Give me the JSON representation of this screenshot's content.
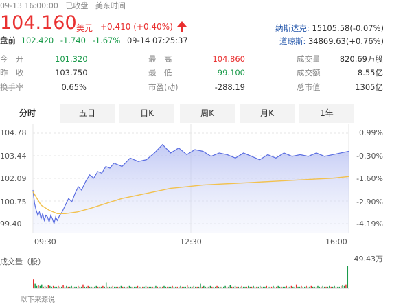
{
  "header": {
    "datetime": "09-13 16:00:00",
    "status": "已收盘",
    "timezone": "美东时间",
    "price": "104.160",
    "currency": "美元",
    "change": "+0.410 (+0.40%)",
    "arrow": "up-arrow-icon",
    "premarket_label": "盘前",
    "premarket_price": "102.420",
    "premarket_change": "-1.740",
    "premarket_pct": "-1.67%",
    "premarket_time": "09-14 07:25:37",
    "indices": [
      {
        "name": "纳斯达克:",
        "value": "15105.58(-0.07%)"
      },
      {
        "name": "道琼斯:",
        "value": "34869.63(+0.76%)"
      }
    ]
  },
  "stats": {
    "open_label": "今　开",
    "open": "101.320",
    "prev_label": "昨　收",
    "prev": "103.750",
    "turnover_label": "换手率",
    "turnover": "0.65%",
    "high_label": "最　高",
    "high": "104.860",
    "low_label": "最　低",
    "low": "99.100",
    "pe_label": "市盈(动)",
    "pe": "-288.19",
    "volume_label": "成交量",
    "volume": "820.69万股",
    "amount_label": "成交额",
    "amount": "8.55亿",
    "mcap_label": "总市值",
    "mcap": "1305亿"
  },
  "tabs": [
    "分时",
    "五日",
    "日K",
    "周K",
    "月K",
    "1年"
  ],
  "active_tab": "分时",
  "chart_data": {
    "type": "line",
    "title": "",
    "y_ticks_left": [
      "104.78",
      "103.44",
      "102.09",
      "100.75",
      "99.40"
    ],
    "y_ticks_right": [
      "0.99%",
      "-0.30%",
      "-1.60%",
      "-2.90%",
      "-4.19%"
    ],
    "x_ticks": [
      "09:30",
      "12:30",
      "16:00"
    ],
    "ylim": [
      99.4,
      104.78
    ],
    "series": [
      {
        "color": "#5b6ee1",
        "x": [
          0,
          2,
          4,
          6,
          8,
          10,
          12,
          14,
          16,
          18,
          20,
          22,
          24,
          26,
          28,
          30,
          33,
          36,
          40,
          44,
          48,
          52,
          56,
          60,
          65,
          70,
          75,
          80,
          85,
          90,
          95,
          100,
          110,
          120,
          130,
          140,
          150,
          160,
          170,
          180,
          190,
          200,
          210,
          220,
          230,
          240,
          250,
          260,
          270,
          280,
          290,
          300,
          310,
          320,
          330,
          340,
          350,
          360,
          370,
          380,
          390
        ],
        "values": [
          101.4,
          100.6,
          100.2,
          99.9,
          100.1,
          99.7,
          100.0,
          99.6,
          99.9,
          99.8,
          99.5,
          99.9,
          99.7,
          99.4,
          99.8,
          99.6,
          99.9,
          100.1,
          100.5,
          100.9,
          100.7,
          101.2,
          101.6,
          101.4,
          101.9,
          102.3,
          102.1,
          102.5,
          102.4,
          102.8,
          102.7,
          103.0,
          102.8,
          103.3,
          103.1,
          103.2,
          103.6,
          104.1,
          103.6,
          103.9,
          103.5,
          103.8,
          103.7,
          103.4,
          103.6,
          103.5,
          103.3,
          103.6,
          103.4,
          103.2,
          103.5,
          103.3,
          103.6,
          103.4,
          103.5,
          103.4,
          103.6,
          103.4,
          103.5,
          103.6,
          103.7
        ]
      },
      {
        "color": "#f2c14e",
        "x": [
          0,
          10,
          20,
          30,
          40,
          55,
          70,
          90,
          110,
          130,
          150,
          170,
          190,
          210,
          230,
          250,
          270,
          290,
          310,
          330,
          350,
          370,
          390
        ],
        "values": [
          101.3,
          100.5,
          100.2,
          100.0,
          100.0,
          100.1,
          100.3,
          100.6,
          100.9,
          101.1,
          101.3,
          101.5,
          101.6,
          101.7,
          101.75,
          101.8,
          101.85,
          101.9,
          101.95,
          102.0,
          102.05,
          102.1,
          102.2
        ]
      }
    ],
    "volume": {
      "label": "成交量（股）",
      "max_label": "49.43万",
      "values": [
        12,
        6,
        3,
        4,
        3,
        5,
        2,
        3,
        2,
        4,
        3,
        2,
        3,
        2,
        2,
        3,
        2,
        2,
        4,
        2,
        3,
        2,
        2,
        3,
        2,
        2,
        2,
        3,
        2,
        2,
        5,
        2,
        2,
        3,
        2,
        2,
        2,
        2,
        3,
        2,
        2,
        2,
        3,
        2,
        8,
        2,
        2,
        2,
        3,
        2,
        2,
        2,
        2,
        3,
        2,
        2,
        2,
        2,
        3,
        2,
        2,
        2,
        2,
        3,
        2,
        2,
        2,
        2,
        3,
        2,
        2,
        2,
        2,
        2,
        3,
        2,
        2,
        2,
        2,
        3,
        2,
        2,
        2,
        2,
        3,
        2,
        2,
        2,
        2,
        3,
        2,
        2,
        2,
        4,
        2,
        2,
        2,
        3,
        2,
        2,
        2,
        6,
        2,
        3,
        2,
        2,
        2,
        3,
        2,
        2,
        2,
        3,
        2,
        2,
        2,
        2,
        3,
        2,
        2,
        4,
        2,
        2,
        3,
        2,
        2,
        2,
        3,
        2,
        2,
        2,
        3,
        2,
        2,
        3,
        2,
        2,
        2,
        3,
        2,
        2,
        2,
        3,
        2,
        2,
        2,
        3,
        2,
        2,
        3,
        2,
        2,
        2,
        2,
        3,
        2,
        2,
        3,
        2,
        2,
        5,
        2,
        2,
        3,
        2,
        2,
        3,
        2,
        2,
        3,
        2,
        2,
        2,
        3,
        2,
        2,
        3,
        2,
        2,
        2,
        3,
        2,
        2,
        3,
        2,
        2,
        2,
        3,
        4,
        3,
        5,
        30
      ]
    }
  },
  "footer_text": "以下来源说"
}
